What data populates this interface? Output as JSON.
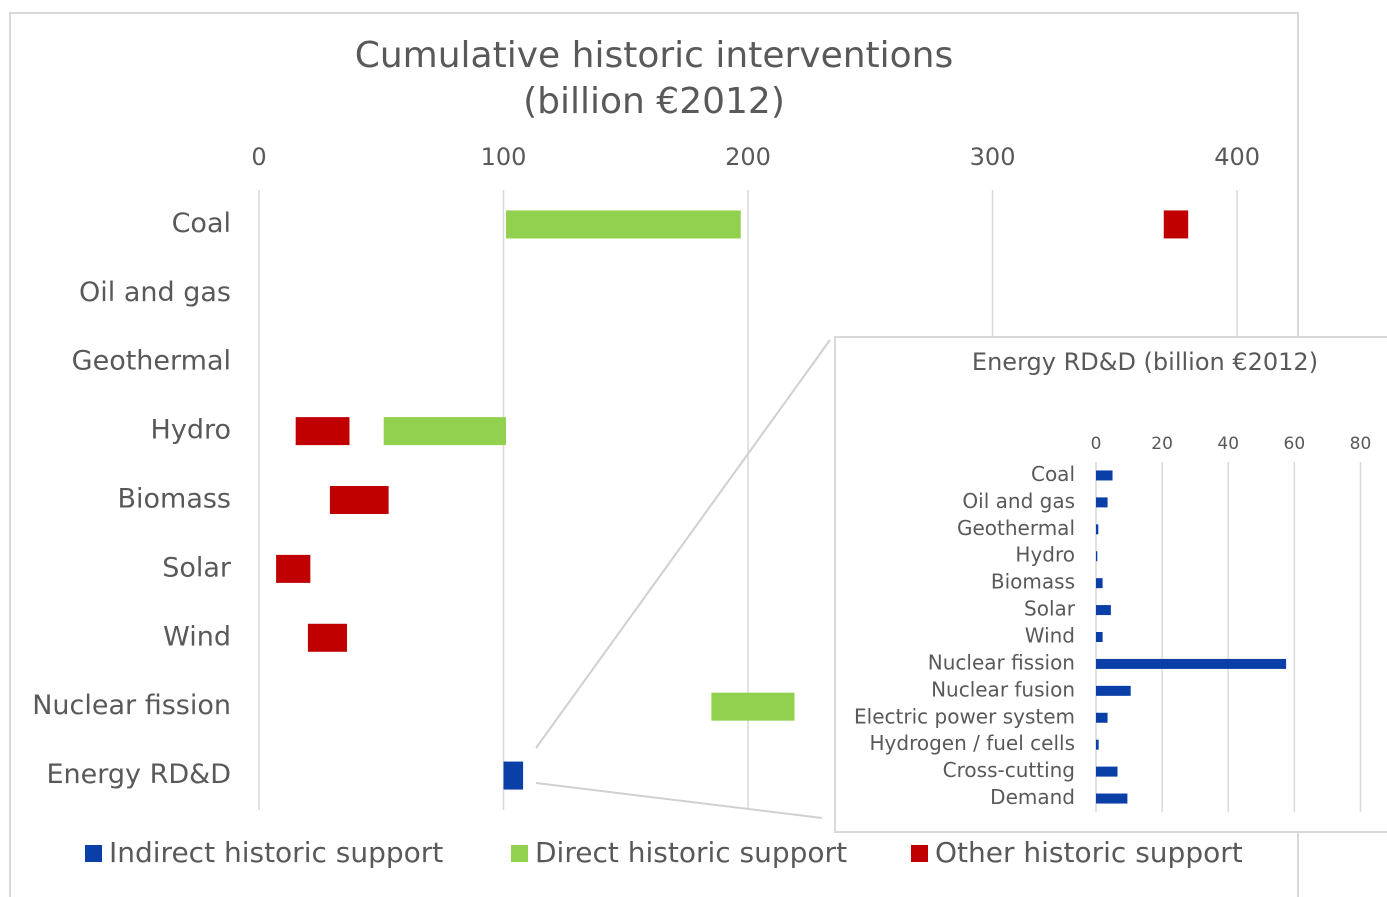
{
  "chart_data": [
    {
      "type": "bar",
      "orientation": "horizontal",
      "title_lines": [
        "Cumulative historic interventions",
        "(billion €2012)"
      ],
      "categories": [
        "Coal",
        "Oil and gas",
        "Geothermal",
        "Hydro",
        "Biomass",
        "Solar",
        "Wind",
        "Nuclear fission",
        "Energy RD&D"
      ],
      "series": [
        {
          "name": "Indirect historic support",
          "color": "#0a3fa8",
          "values": [
            null,
            null,
            null,
            null,
            null,
            null,
            null,
            null,
            [
              100,
              108
            ]
          ]
        },
        {
          "name": "Direct historic support",
          "color": "#92d050",
          "values": [
            [
              101,
              197
            ],
            null,
            null,
            [
              51,
              101
            ],
            null,
            null,
            null,
            [
              185,
              219
            ],
            null
          ]
        },
        {
          "name": "Other historic support",
          "color": "#c00000",
          "values": [
            [
              370,
              380
            ],
            null,
            null,
            [
              15,
              37
            ],
            [
              29,
              53
            ],
            [
              7,
              21
            ],
            [
              20,
              36
            ],
            null,
            null
          ]
        }
      ],
      "xlim": [
        0,
        420
      ],
      "xticks": [
        0,
        100,
        200,
        300,
        400
      ],
      "grid": true,
      "legend": "bottom"
    },
    {
      "type": "bar",
      "orientation": "horizontal",
      "title": "Energy RD&D (billion €2012)",
      "categories": [
        "Coal",
        "Oil and gas",
        "Geothermal",
        "Hydro",
        "Biomass",
        "Solar",
        "Wind",
        "Nuclear fission",
        "Nuclear fusion",
        "Electric power system",
        "Hydrogen / fuel cells",
        "Cross-cutting",
        "Demand"
      ],
      "values": [
        5,
        3.5,
        0.7,
        0.4,
        2,
        4.5,
        2,
        57.5,
        10.5,
        3.5,
        0.8,
        6.5,
        9.5
      ],
      "color": "#0a3fa8",
      "xlim": [
        0,
        85
      ],
      "xticks": [
        0,
        20,
        40,
        60,
        80
      ],
      "grid": true
    }
  ]
}
